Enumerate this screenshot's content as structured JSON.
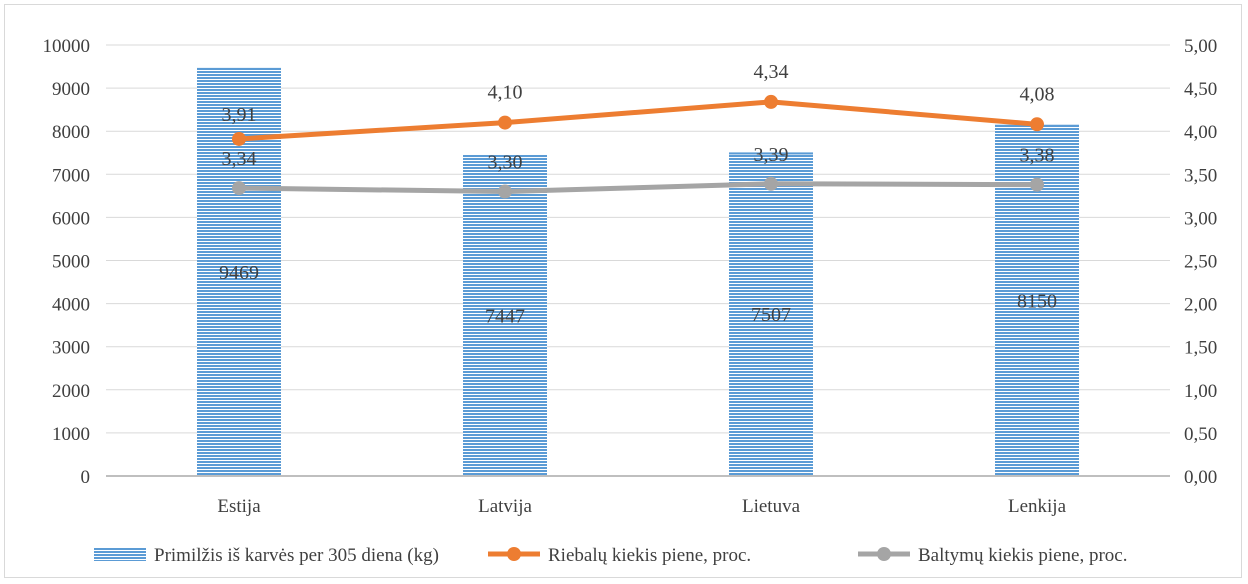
{
  "chart_data": {
    "type": "bar",
    "categories": [
      "Estija",
      "Latvija",
      "Lietuva",
      "Lenkija"
    ],
    "series": [
      {
        "name": "Primilžis iš karvės per 305 diena (kg)",
        "type": "bar",
        "axis": "left",
        "values": [
          9469,
          7447,
          7507,
          8150
        ],
        "labels": [
          "9469",
          "7447",
          "7507",
          "8150"
        ],
        "color": "#5b9bd5"
      },
      {
        "name": "Riebalų kiekis piene, proc.",
        "type": "line",
        "axis": "right",
        "values": [
          3.91,
          4.1,
          4.34,
          4.08
        ],
        "labels": [
          "3,91",
          "4,10",
          "4,34",
          "4,08"
        ],
        "color": "#ed7d31"
      },
      {
        "name": "Baltymų kiekis piene, proc.",
        "type": "line",
        "axis": "right",
        "values": [
          3.34,
          3.3,
          3.39,
          3.38
        ],
        "labels": [
          "3,34",
          "3,30",
          "3,39",
          "3,38"
        ],
        "color": "#a5a5a5"
      }
    ],
    "y_left": {
      "min": 0,
      "max": 10000,
      "step": 1000,
      "ticks": [
        "0",
        "1000",
        "2000",
        "3000",
        "4000",
        "5000",
        "6000",
        "7000",
        "8000",
        "9000",
        "10000"
      ]
    },
    "y_right": {
      "min": 0,
      "max": 5,
      "step": 0.5,
      "ticks": [
        "0,00",
        "0,50",
        "1,00",
        "1,50",
        "2,00",
        "2,50",
        "3,00",
        "3,50",
        "4,00",
        "4,50",
        "5,00"
      ]
    },
    "grid": true,
    "legend": "bottom"
  }
}
